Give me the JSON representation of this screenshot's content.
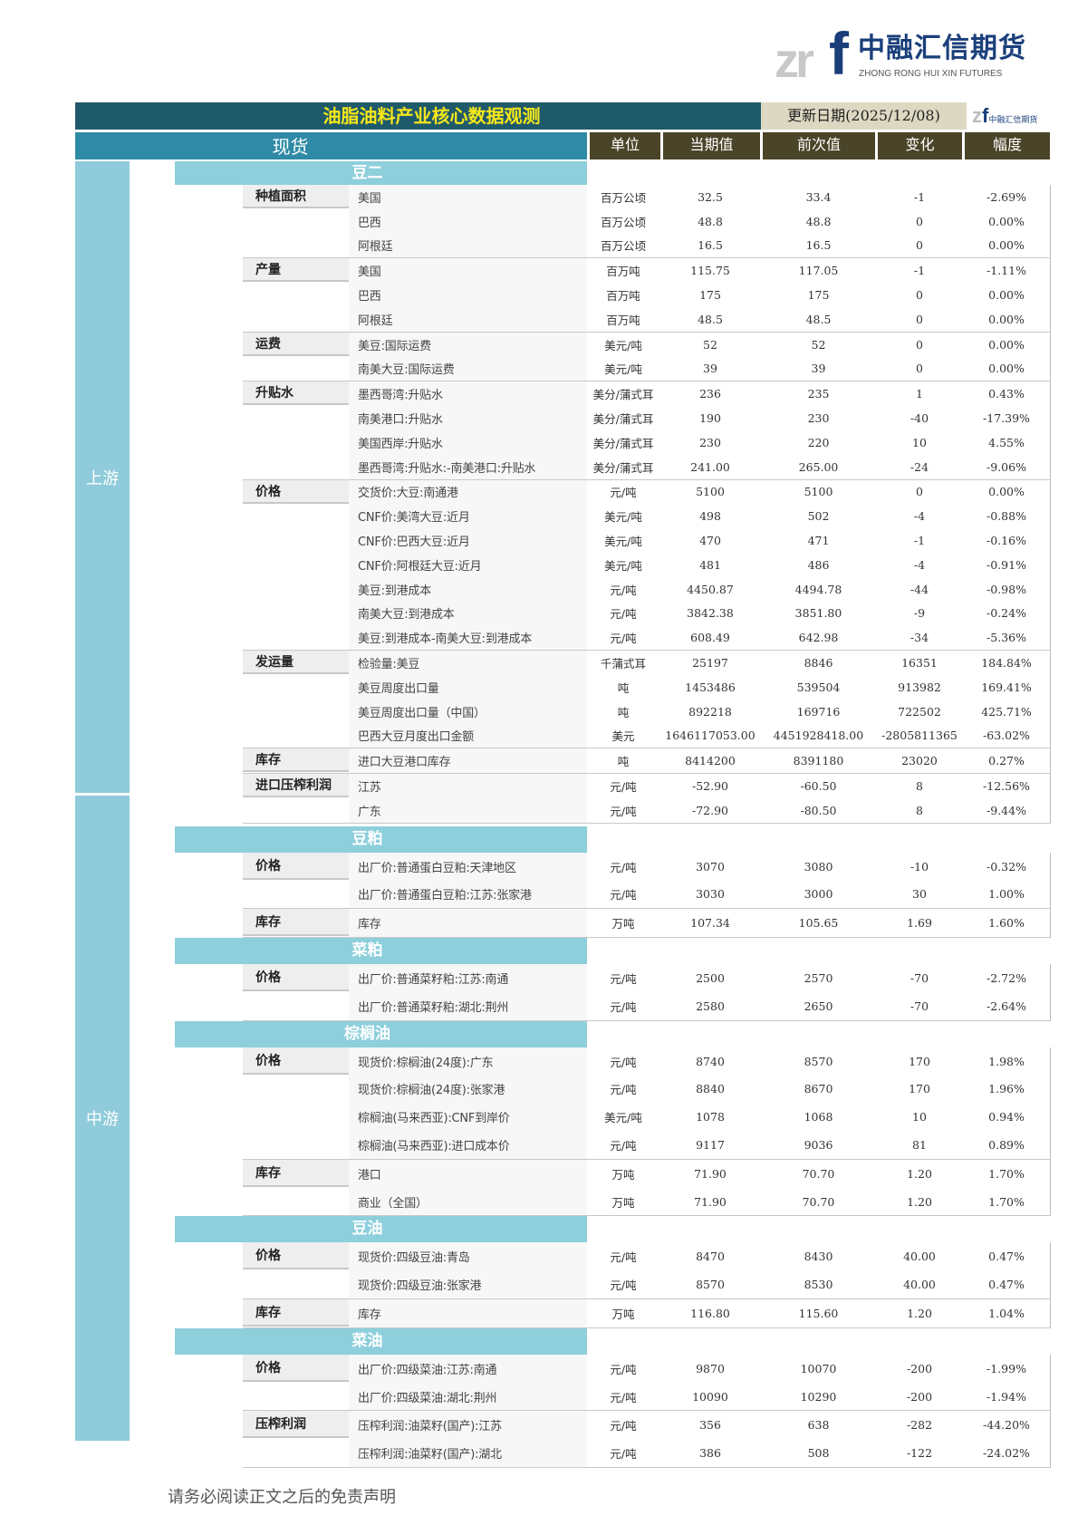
{
  "logo": {
    "mark": "zrf",
    "name_cn": "中融汇信期货",
    "name_en": "ZHONG RONG HUI XIN FUTURES"
  },
  "title": "油脂油料产业核心数据观测",
  "update_date": "更新日期(2025/12/08)",
  "header": {
    "spot": "现货",
    "unit": "单位",
    "current": "当期值",
    "previous": "前次值",
    "change": "变化",
    "pct": "幅度"
  },
  "colors": {
    "title_bg": "#1f5a6b",
    "title_text": "#f6e61a",
    "section_bg": "#8ecfdc",
    "header_bg": "#4a4428",
    "spot_bg": "#2f8aa5"
  },
  "regions": [
    {
      "name": "上游",
      "sections": [
        {
          "name": "豆二",
          "groups": [
            {
              "label": "种植面积",
              "rows": [
                [
                  "美国",
                  "百万公顷",
                  "32.5",
                  "33.4",
                  "-1",
                  "-2.69%"
                ],
                [
                  "巴西",
                  "百万公顷",
                  "48.8",
                  "48.8",
                  "0",
                  "0.00%"
                ],
                [
                  "阿根廷",
                  "百万公顷",
                  "16.5",
                  "16.5",
                  "0",
                  "0.00%"
                ]
              ]
            },
            {
              "label": "产量",
              "rows": [
                [
                  "美国",
                  "百万吨",
                  "115.75",
                  "117.05",
                  "-1",
                  "-1.11%"
                ],
                [
                  "巴西",
                  "百万吨",
                  "175",
                  "175",
                  "0",
                  "0.00%"
                ],
                [
                  "阿根廷",
                  "百万吨",
                  "48.5",
                  "48.5",
                  "0",
                  "0.00%"
                ]
              ]
            },
            {
              "label": "运费",
              "rows": [
                [
                  "美豆:国际运费",
                  "美元/吨",
                  "52",
                  "52",
                  "0",
                  "0.00%"
                ],
                [
                  "南美大豆:国际运费",
                  "美元/吨",
                  "39",
                  "39",
                  "0",
                  "0.00%"
                ]
              ]
            },
            {
              "label": "升贴水",
              "rows": [
                [
                  "墨西哥湾:升贴水",
                  "美分/蒲式耳",
                  "236",
                  "235",
                  "1",
                  "0.43%"
                ],
                [
                  "南美港口:升贴水",
                  "美分/蒲式耳",
                  "190",
                  "230",
                  "-40",
                  "-17.39%"
                ],
                [
                  "美国西岸:升贴水",
                  "美分/蒲式耳",
                  "230",
                  "220",
                  "10",
                  "4.55%"
                ],
                [
                  "墨西哥湾:升贴水:-南美港口:升贴水",
                  "美分/蒲式耳",
                  "241.00",
                  "265.00",
                  "-24",
                  "-9.06%"
                ]
              ]
            },
            {
              "label": "价格",
              "rows": [
                [
                  "交货价:大豆:南通港",
                  "元/吨",
                  "5100",
                  "5100",
                  "0",
                  "0.00%"
                ],
                [
                  "CNF价:美湾大豆:近月",
                  "美元/吨",
                  "498",
                  "502",
                  "-4",
                  "-0.88%"
                ],
                [
                  "CNF价:巴西大豆:近月",
                  "美元/吨",
                  "470",
                  "471",
                  "-1",
                  "-0.16%"
                ],
                [
                  "CNF价:阿根廷大豆:近月",
                  "美元/吨",
                  "481",
                  "486",
                  "-4",
                  "-0.91%"
                ],
                [
                  "美豆:到港成本",
                  "元/吨",
                  "4450.87",
                  "4494.78",
                  "-44",
                  "-0.98%"
                ],
                [
                  "南美大豆:到港成本",
                  "元/吨",
                  "3842.38",
                  "3851.80",
                  "-9",
                  "-0.24%"
                ],
                [
                  "美豆:到港成本-南美大豆:到港成本",
                  "元/吨",
                  "608.49",
                  "642.98",
                  "-34",
                  "-5.36%"
                ]
              ]
            },
            {
              "label": "发运量",
              "rows": [
                [
                  "检验量:美豆",
                  "千蒲式耳",
                  "25197",
                  "8846",
                  "16351",
                  "184.84%"
                ],
                [
                  "美豆周度出口量",
                  "吨",
                  "1453486",
                  "539504",
                  "913982",
                  "169.41%"
                ],
                [
                  "美豆周度出口量（中国）",
                  "吨",
                  "892218",
                  "169716",
                  "722502",
                  "425.71%"
                ],
                [
                  "巴西大豆月度出口金额",
                  "美元",
                  "1646117053.00",
                  "4451928418.00",
                  "-2805811365",
                  "-63.02%"
                ]
              ]
            },
            {
              "label": "库存",
              "rows": [
                [
                  "进口大豆港口库存",
                  "吨",
                  "8414200",
                  "8391180",
                  "23020",
                  "0.27%"
                ]
              ]
            },
            {
              "label": "进口压榨利润",
              "rows": [
                [
                  "江苏",
                  "元/吨",
                  "-52.90",
                  "-60.50",
                  "8",
                  "-12.56%"
                ],
                [
                  "广东",
                  "元/吨",
                  "-72.90",
                  "-80.50",
                  "8",
                  "-9.44%"
                ]
              ]
            }
          ]
        }
      ]
    },
    {
      "name": "中游",
      "sections": [
        {
          "name": "豆粕",
          "groups": [
            {
              "label": "价格",
              "rows": [
                [
                  "出厂价:普通蛋白豆粕:天津地区",
                  "元/吨",
                  "3070",
                  "3080",
                  "-10",
                  "-0.32%"
                ],
                [
                  "出厂价:普通蛋白豆粕:江苏:张家港",
                  "元/吨",
                  "3030",
                  "3000",
                  "30",
                  "1.00%"
                ]
              ]
            },
            {
              "label": "库存",
              "rows": [
                [
                  "库存",
                  "万吨",
                  "107.34",
                  "105.65",
                  "1.69",
                  "1.60%"
                ]
              ]
            }
          ]
        },
        {
          "name": "菜粕",
          "groups": [
            {
              "label": "价格",
              "rows": [
                [
                  "出厂价:普通菜籽粕:江苏:南通",
                  "元/吨",
                  "2500",
                  "2570",
                  "-70",
                  "-2.72%"
                ],
                [
                  "出厂价:普通菜籽粕:湖北:荆州",
                  "元/吨",
                  "2580",
                  "2650",
                  "-70",
                  "-2.64%"
                ]
              ]
            }
          ]
        },
        {
          "name": "棕榈油",
          "groups": [
            {
              "label": "价格",
              "rows": [
                [
                  "现货价:棕榈油(24度):广东",
                  "元/吨",
                  "8740",
                  "8570",
                  "170",
                  "1.98%"
                ],
                [
                  "现货价:棕榈油(24度):张家港",
                  "元/吨",
                  "8840",
                  "8670",
                  "170",
                  "1.96%"
                ],
                [
                  "棕榈油(马来西亚):CNF到岸价",
                  "美元/吨",
                  "1078",
                  "1068",
                  "10",
                  "0.94%"
                ],
                [
                  "棕榈油(马来西亚):进口成本价",
                  "元/吨",
                  "9117",
                  "9036",
                  "81",
                  "0.89%"
                ]
              ]
            },
            {
              "label": "库存",
              "rows": [
                [
                  "港口",
                  "万吨",
                  "71.90",
                  "70.70",
                  "1.20",
                  "1.70%"
                ],
                [
                  "商业（全国）",
                  "万吨",
                  "71.90",
                  "70.70",
                  "1.20",
                  "1.70%"
                ]
              ]
            }
          ]
        },
        {
          "name": "豆油",
          "groups": [
            {
              "label": "价格",
              "rows": [
                [
                  "现货价:四级豆油:青岛",
                  "元/吨",
                  "8470",
                  "8430",
                  "40.00",
                  "0.47%"
                ],
                [
                  "现货价:四级豆油:张家港",
                  "元/吨",
                  "8570",
                  "8530",
                  "40.00",
                  "0.47%"
                ]
              ]
            },
            {
              "label": "库存",
              "rows": [
                [
                  "库存",
                  "万吨",
                  "116.80",
                  "115.60",
                  "1.20",
                  "1.04%"
                ]
              ]
            }
          ]
        },
        {
          "name": "菜油",
          "groups": [
            {
              "label": "价格",
              "rows": [
                [
                  "出厂价:四级菜油:江苏:南通",
                  "元/吨",
                  "9870",
                  "10070",
                  "-200",
                  "-1.99%"
                ],
                [
                  "出厂价:四级菜油:湖北:荆州",
                  "元/吨",
                  "10090",
                  "10290",
                  "-200",
                  "-1.94%"
                ]
              ]
            },
            {
              "label": "压榨利润",
              "rows": [
                [
                  "压榨利润:油菜籽(国产):江苏",
                  "元/吨",
                  "356",
                  "638",
                  "-282",
                  "-44.20%"
                ],
                [
                  "压榨利润:油菜籽(国产):湖北",
                  "元/吨",
                  "386",
                  "508",
                  "-122",
                  "-24.02%"
                ]
              ]
            }
          ]
        }
      ]
    }
  ],
  "footer": "请务必阅读正文之后的免责声明"
}
